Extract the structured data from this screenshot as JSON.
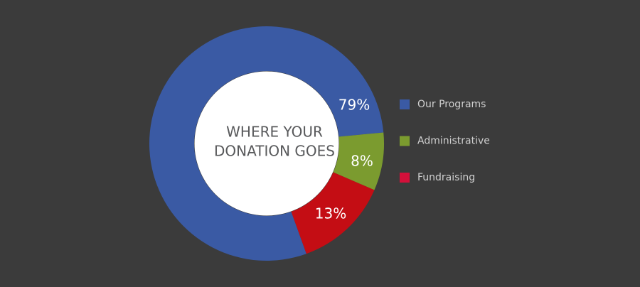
{
  "chart_data": {
    "type": "donut",
    "title": [
      "WHERE YOUR",
      "DONATION GOES"
    ],
    "categories": [
      "Our Programs",
      "Administrative",
      "Fundraising"
    ],
    "values": [
      79,
      8,
      13
    ],
    "value_labels": [
      "79%",
      "8%",
      "13%"
    ],
    "colors": [
      "#3a5aa4",
      "#7b9b2f",
      "#c40d14"
    ],
    "legend_colors": [
      "#3a5aa4",
      "#7b9b2f",
      "#d3103a"
    ],
    "legend": "right"
  }
}
